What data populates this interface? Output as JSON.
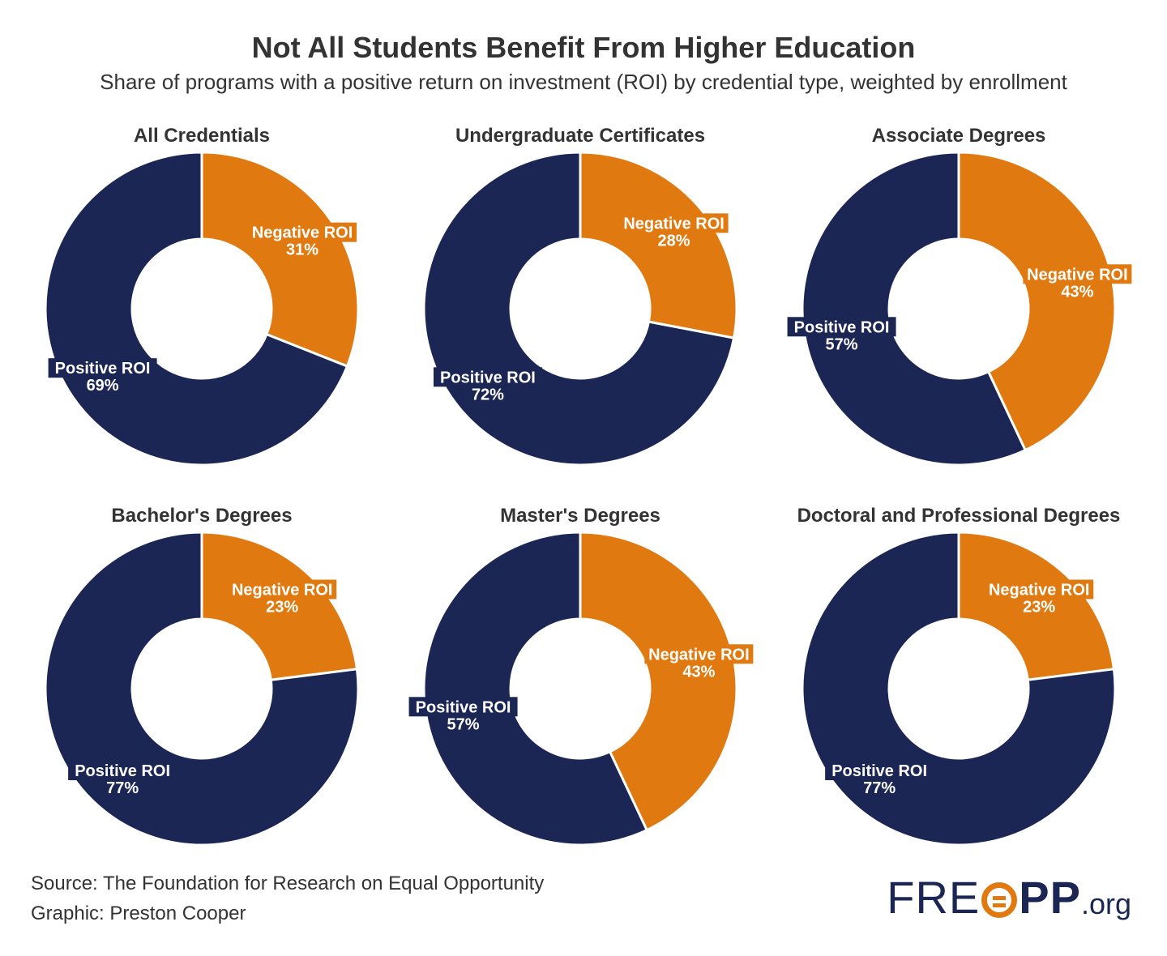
{
  "title": "Not All Students Benefit From Higher Education",
  "subtitle": "Share of programs with a positive return on investment (ROI) by credential type, weighted by enrollment",
  "colors": {
    "positive": "#1b2654",
    "negative": "#e07a10",
    "text": "#333333"
  },
  "chart_data": [
    {
      "type": "pie",
      "title": "All Credentials",
      "slices": [
        {
          "label": "Negative ROI",
          "value": 31,
          "display": "31%"
        },
        {
          "label": "Positive ROI",
          "value": 69,
          "display": "69%"
        }
      ]
    },
    {
      "type": "pie",
      "title": "Undergraduate Certificates",
      "slices": [
        {
          "label": "Negative ROI",
          "value": 28,
          "display": "28%"
        },
        {
          "label": "Positive ROI",
          "value": 72,
          "display": "72%"
        }
      ]
    },
    {
      "type": "pie",
      "title": "Associate Degrees",
      "slices": [
        {
          "label": "Negative ROI",
          "value": 43,
          "display": "43%"
        },
        {
          "label": "Positive ROI",
          "value": 57,
          "display": "57%"
        }
      ]
    },
    {
      "type": "pie",
      "title": "Bachelor's Degrees",
      "slices": [
        {
          "label": "Negative ROI",
          "value": 23,
          "display": "23%"
        },
        {
          "label": "Positive ROI",
          "value": 77,
          "display": "77%"
        }
      ]
    },
    {
      "type": "pie",
      "title": "Master's Degrees",
      "slices": [
        {
          "label": "Negative ROI",
          "value": 43,
          "display": "43%"
        },
        {
          "label": "Positive ROI",
          "value": 57,
          "display": "57%"
        }
      ]
    },
    {
      "type": "pie",
      "title": "Doctoral and Professional Degrees",
      "slices": [
        {
          "label": "Negative ROI",
          "value": 23,
          "display": "23%"
        },
        {
          "label": "Positive ROI",
          "value": 77,
          "display": "77%"
        }
      ]
    }
  ],
  "footer": {
    "source": "Source: The Foundation for Research on Equal Opportunity",
    "graphic": "Graphic: Preston Cooper"
  },
  "logo": {
    "part1": "FRE",
    "part2": "PP",
    "part3": ".org"
  }
}
